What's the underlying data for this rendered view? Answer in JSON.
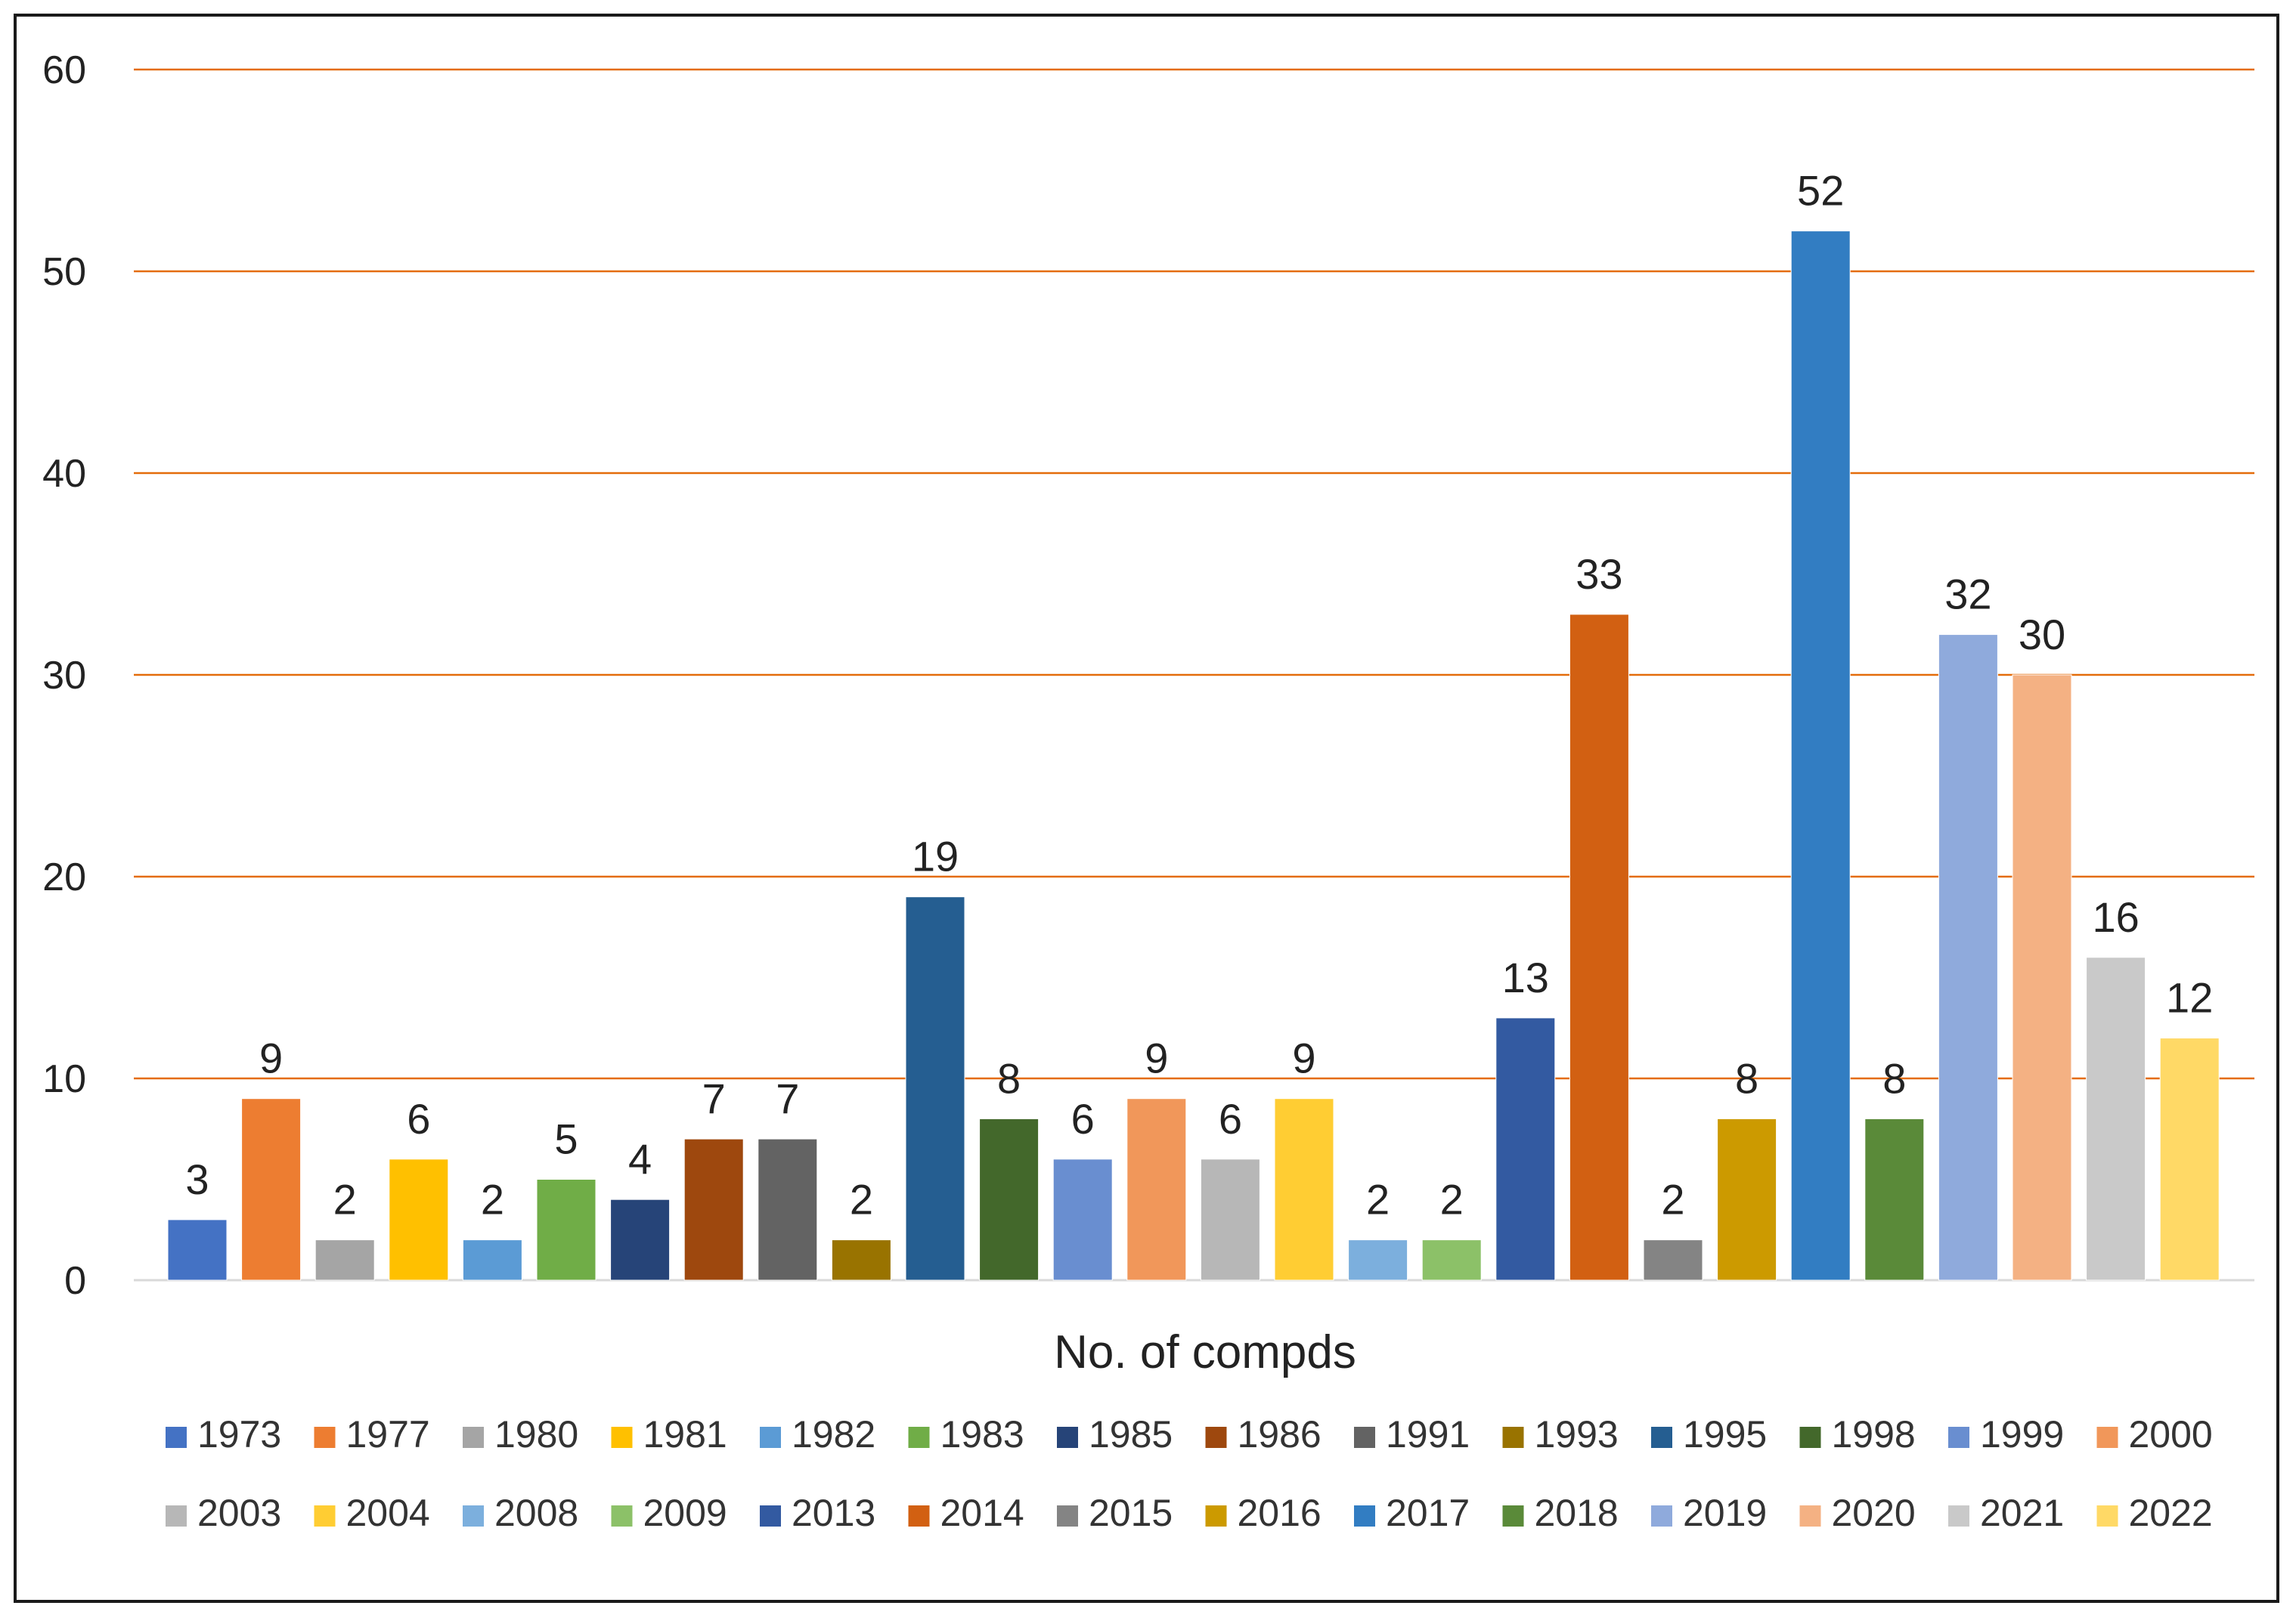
{
  "chart_data": {
    "type": "bar",
    "title": "",
    "xlabel": "No. of compds",
    "ylabel": "",
    "ylim": [
      0,
      60
    ],
    "yticks": [
      0,
      10,
      20,
      30,
      40,
      50,
      60
    ],
    "grid": true,
    "legend_position": "bottom",
    "gridline_color": "#E46C0A",
    "categories": [
      "1973",
      "1977",
      "1980",
      "1981",
      "1982",
      "1983",
      "1985",
      "1986",
      "1991",
      "1993",
      "1995",
      "1998",
      "1999",
      "2000",
      "2003",
      "2004",
      "2008",
      "2009",
      "2013",
      "2014",
      "2015",
      "2016",
      "2017",
      "2018",
      "2019",
      "2020",
      "2021",
      "2022"
    ],
    "values": [
      3,
      9,
      2,
      6,
      2,
      5,
      4,
      7,
      7,
      2,
      19,
      8,
      6,
      9,
      6,
      9,
      2,
      2,
      13,
      33,
      2,
      8,
      52,
      8,
      32,
      30,
      16,
      12
    ],
    "colors": [
      "#4472C4",
      "#ED7D31",
      "#A5A5A5",
      "#FFC000",
      "#5B9BD5",
      "#70AD47",
      "#264478",
      "#9E480E",
      "#636363",
      "#997300",
      "#255E91",
      "#43682B",
      "#698ED0",
      "#F1975A",
      "#B7B7B7",
      "#FFCD33",
      "#7CAFDD",
      "#8CC168",
      "#335AA1",
      "#D26012",
      "#848484",
      "#CC9A00",
      "#327DC2",
      "#5A8A39",
      "#8FAADC",
      "#F4B183",
      "#C9C9C9",
      "#FFD966"
    ]
  }
}
